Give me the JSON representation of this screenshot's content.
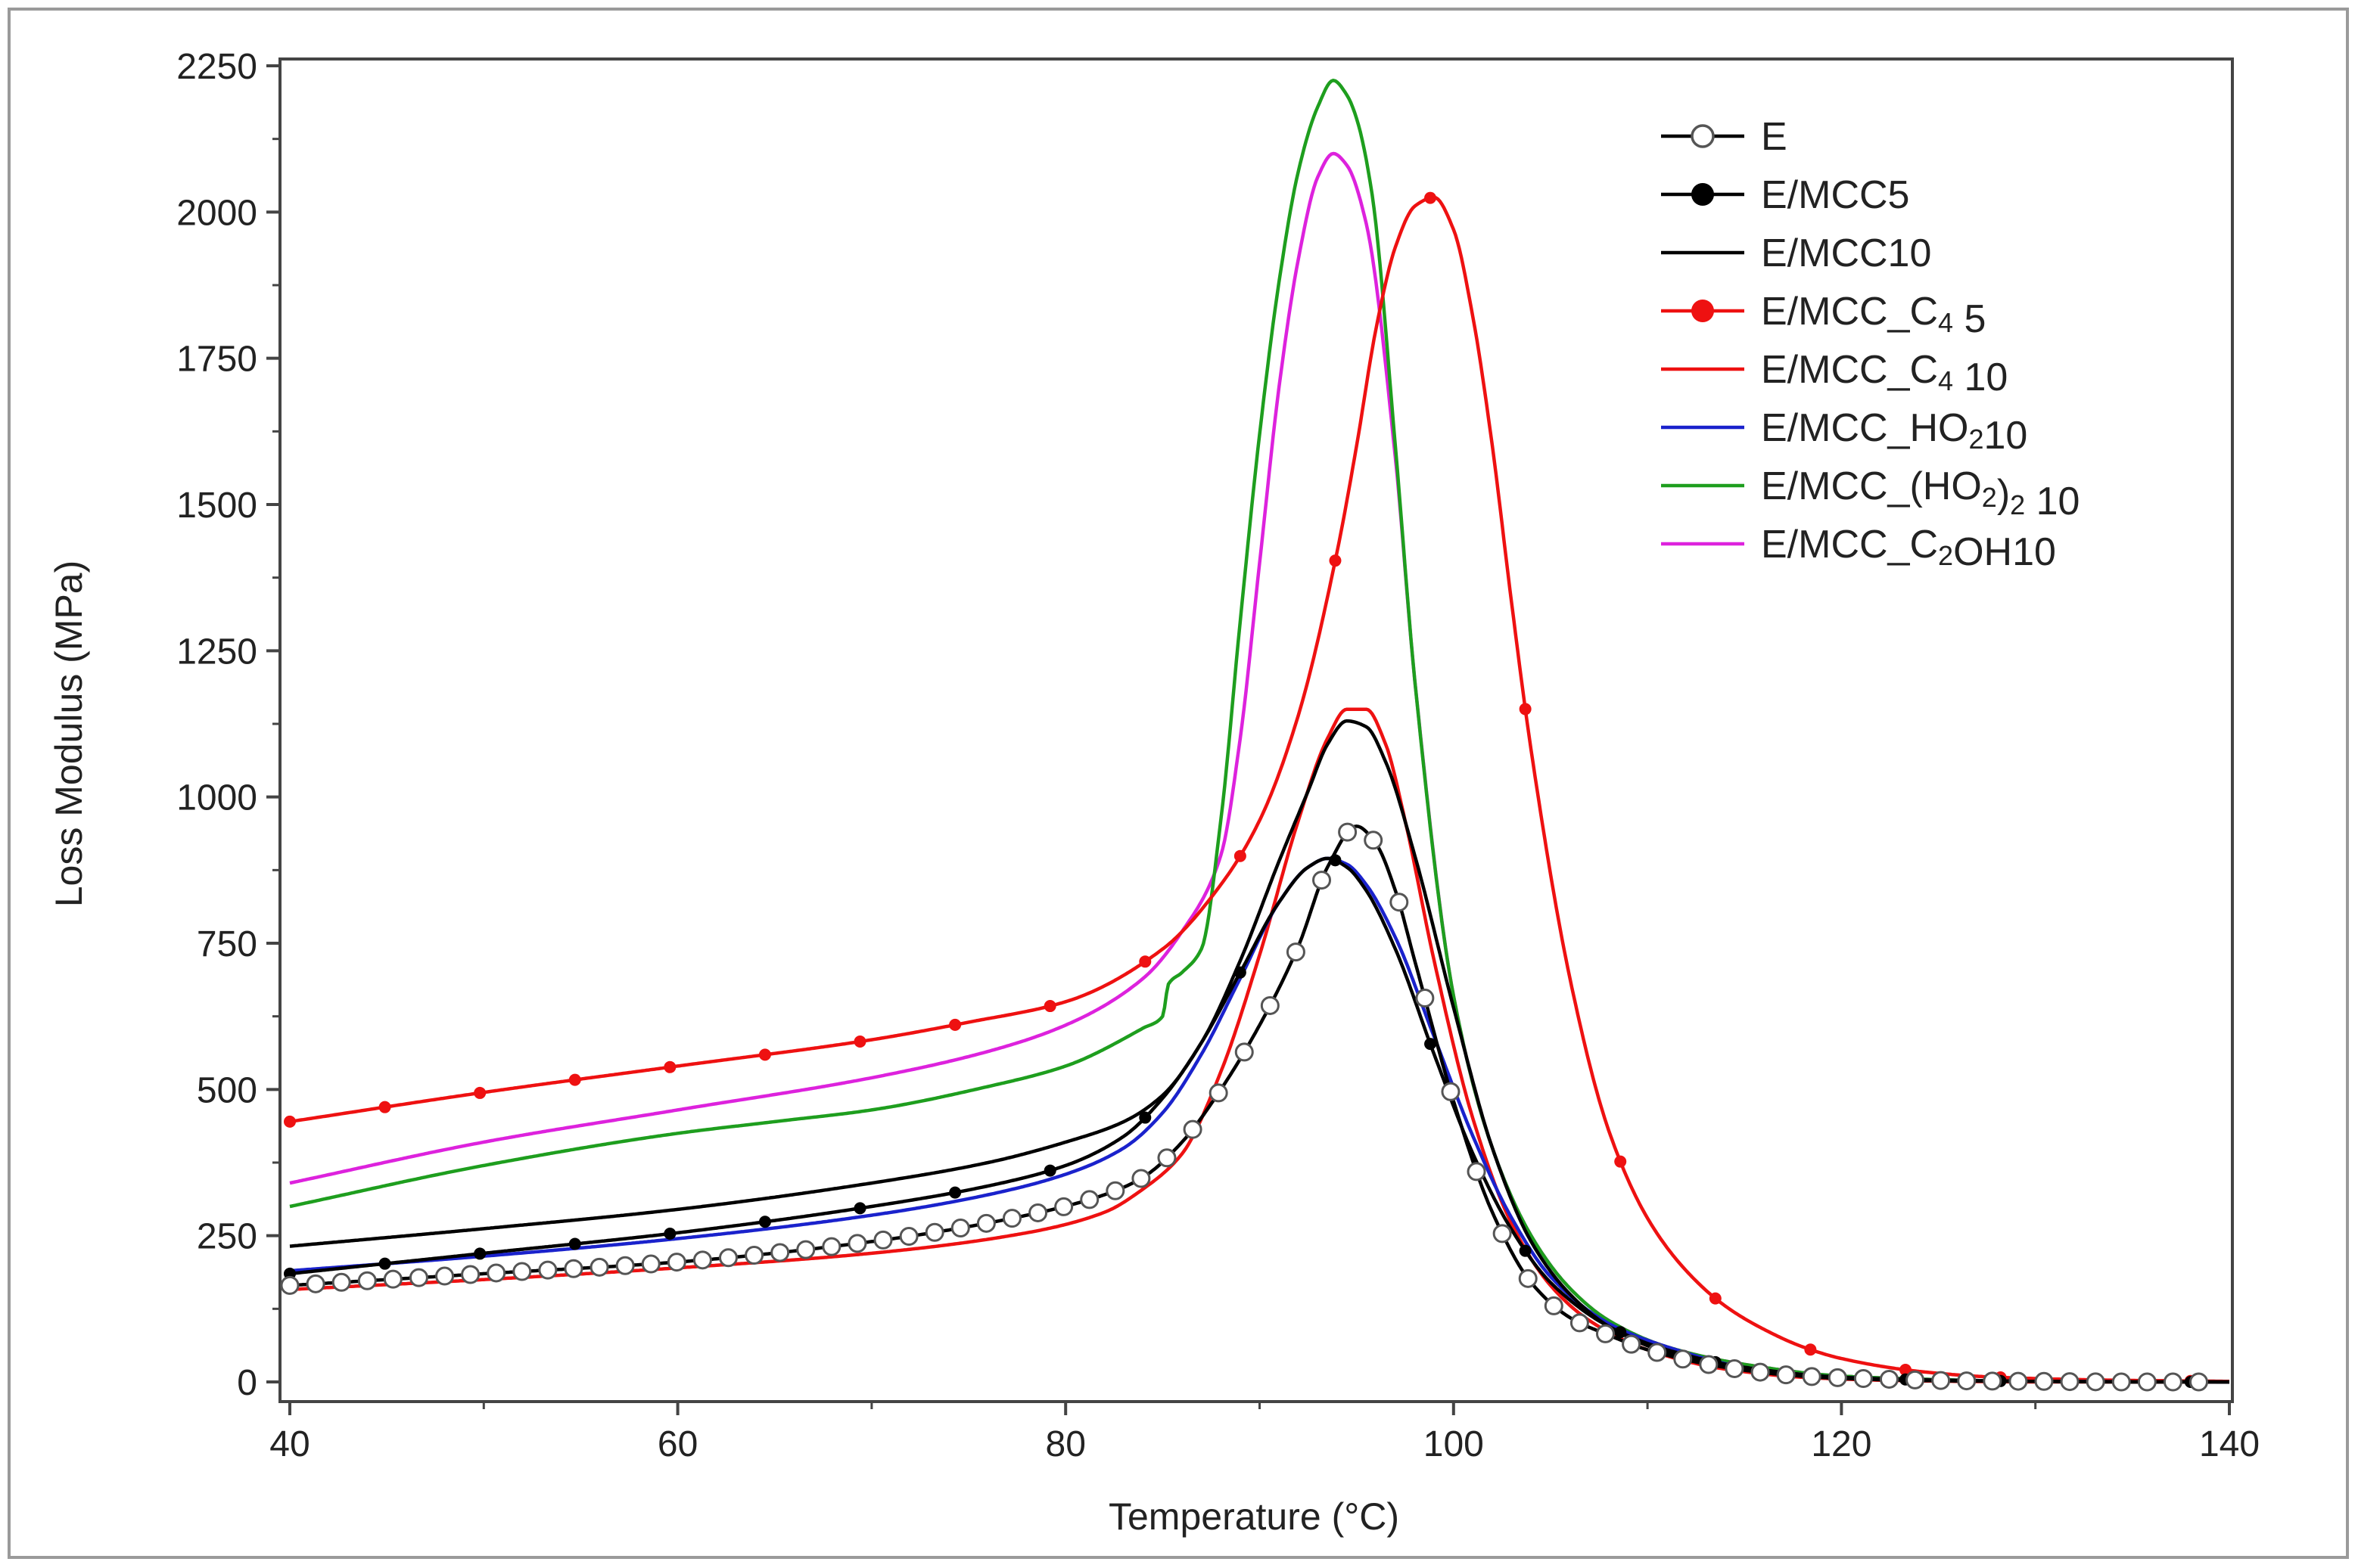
{
  "chart_data": {
    "type": "line",
    "title": "",
    "xlabel": "Temperature (°C)",
    "ylabel": "Loss Modulus (MPa)",
    "xlim": [
      40,
      140
    ],
    "ylim": [
      -80,
      2330
    ],
    "x_ticks": [
      40,
      60,
      80,
      100,
      120,
      140
    ],
    "y_ticks": [
      0,
      250,
      500,
      750,
      1000,
      1250,
      1500,
      1750,
      2000,
      2250
    ],
    "x_tick_labels": [
      "40",
      "60",
      "80",
      "100",
      "120",
      "140"
    ],
    "y_tick_labels": [
      "0",
      "250",
      "500",
      "750",
      "1000",
      "1250",
      "1500",
      "1750",
      "2000",
      "2250"
    ],
    "grid": false,
    "legend_position": "top-right",
    "series": [
      {
        "name": "E",
        "legend_label": "E",
        "color": "#000000",
        "marker": "open-circle",
        "x": [
          40,
          50,
          60,
          70,
          78,
          82,
          84,
          86,
          88,
          90,
          92,
          93.5,
          95,
          96,
          97,
          98,
          100,
          102,
          104,
          106,
          108,
          110,
          114,
          118,
          122,
          126,
          130,
          135,
          140
        ],
        "y": [
          165,
          185,
          205,
          240,
          285,
          320,
          350,
          410,
          500,
          610,
          745,
          880,
          950,
          920,
          840,
          720,
          480,
          290,
          170,
          110,
          80,
          55,
          25,
          10,
          5,
          2,
          1,
          0,
          0
        ]
      },
      {
        "name": "E/MCC5",
        "legend_label": "E/MCC5",
        "color": "#000000",
        "marker": "filled-dot",
        "x": [
          40,
          50,
          60,
          70,
          76,
          80,
          83,
          85,
          87,
          89,
          91,
          92.5,
          93.5,
          94.5,
          95.5,
          97,
          99,
          101,
          103,
          105,
          108,
          111,
          115,
          120,
          125,
          130,
          135,
          140
        ],
        "y": [
          185,
          220,
          255,
          300,
          335,
          370,
          420,
          485,
          580,
          700,
          820,
          880,
          895,
          880,
          840,
          740,
          560,
          390,
          260,
          170,
          95,
          55,
          25,
          8,
          3,
          1,
          0,
          0
        ]
      },
      {
        "name": "E/MCC10",
        "legend_label": "E/MCC10",
        "color": "#000000",
        "marker": "none",
        "x": [
          40,
          50,
          60,
          70,
          76,
          80,
          83,
          85,
          87,
          89,
          91,
          92.5,
          93.5,
          94.5,
          95.5,
          96.5,
          98,
          100,
          102,
          104,
          106,
          108,
          111,
          115,
          120,
          125,
          130,
          140
        ],
        "y": [
          232,
          262,
          295,
          340,
          375,
          410,
          445,
          490,
          580,
          720,
          890,
          1010,
          1090,
          1130,
          1120,
          1060,
          900,
          640,
          400,
          240,
          150,
          95,
          50,
          20,
          6,
          2,
          1,
          0
        ]
      },
      {
        "name": "E/MCC_C45",
        "legend_label": "E/MCC_C",
        "legend_sub": "4",
        "legend_tail": " 5",
        "color": "#ee1111",
        "marker": "filled-dot",
        "x": [
          40,
          50,
          60,
          70,
          75,
          80,
          85,
          88,
          90,
          92,
          94,
          95,
          96,
          97,
          98,
          99,
          100,
          101,
          102,
          103,
          104,
          106,
          108,
          110,
          112,
          114,
          116,
          118,
          120,
          124,
          128,
          134,
          140
        ],
        "y": [
          445,
          495,
          540,
          585,
          615,
          650,
          740,
          850,
          960,
          1140,
          1420,
          1600,
          1800,
          1940,
          2010,
          2025,
          1970,
          1820,
          1600,
          1330,
          1080,
          690,
          430,
          280,
          190,
          130,
          90,
          60,
          40,
          18,
          8,
          3,
          1
        ]
      },
      {
        "name": "E/MCC_C410",
        "legend_label": "E/MCC_C",
        "legend_sub": "4",
        "legend_tail": " 10",
        "color": "#ee1111",
        "marker": "none",
        "x": [
          40,
          50,
          60,
          70,
          78,
          82,
          84,
          86,
          88,
          90,
          92,
          93.5,
          94.5,
          95.5,
          96.5,
          97.5,
          99,
          101,
          103,
          105,
          107,
          110,
          114,
          118,
          122,
          126,
          130,
          140
        ],
        "y": [
          158,
          175,
          195,
          220,
          255,
          290,
          330,
          390,
          530,
          730,
          960,
          1100,
          1150,
          1150,
          1090,
          960,
          720,
          450,
          270,
          165,
          105,
          55,
          22,
          8,
          3,
          1,
          0,
          0
        ]
      },
      {
        "name": "E/MCC_HO210",
        "legend_label": "E/MCC_HO",
        "legend_sub": "2",
        "legend_tail": "10",
        "color": "#1a22cc",
        "marker": "none",
        "x": [
          40,
          50,
          60,
          70,
          76,
          80,
          83,
          85,
          87,
          89,
          91,
          92.5,
          93.5,
          94.5,
          95.5,
          97,
          99,
          101,
          103,
          105,
          108,
          111,
          115,
          120,
          125,
          130,
          140
        ],
        "y": [
          190,
          215,
          245,
          285,
          320,
          355,
          400,
          460,
          560,
          690,
          820,
          880,
          895,
          885,
          850,
          760,
          590,
          420,
          280,
          180,
          100,
          60,
          25,
          8,
          3,
          1,
          0
        ]
      },
      {
        "name": "E/MCC_(HO2)210",
        "legend_label": "E/MCC_(HO",
        "legend_sub": "2",
        "legend_mid": ")",
        "legend_sub2": "2",
        "legend_tail": " 10",
        "color": "#1e9e1e",
        "marker": "none",
        "x": [
          40,
          50,
          60,
          65,
          70,
          76,
          80,
          84,
          85,
          85.3,
          86,
          87,
          88,
          89,
          90,
          91,
          92,
          93,
          93.8,
          94.5,
          95,
          95.8,
          97,
          98,
          100,
          102,
          104,
          106,
          108,
          111,
          115,
          120,
          125,
          130,
          140
        ],
        "y": [
          300,
          370,
          425,
          445,
          465,
          505,
          540,
          605,
          625,
          680,
          700,
          740,
          960,
          1300,
          1620,
          1880,
          2070,
          2180,
          2225,
          2200,
          2160,
          2030,
          1600,
          1200,
          660,
          400,
          250,
          160,
          105,
          60,
          30,
          10,
          4,
          1,
          0
        ]
      },
      {
        "name": "E/MCC_C2OH10",
        "legend_label": "E/MCC_C",
        "legend_sub": "2",
        "legend_tail": "OH10",
        "color": "#dd22dd",
        "marker": "none",
        "x": [
          40,
          50,
          60,
          70,
          76,
          80,
          84,
          86,
          88,
          89,
          90,
          91,
          92,
          93,
          93.8,
          94.5,
          95.5,
          97,
          98,
          100,
          102,
          104,
          106,
          108,
          111,
          115,
          120,
          125,
          130,
          140
        ],
        "y": [
          340,
          410,
          465,
          520,
          565,
          610,
          690,
          770,
          900,
          1100,
          1400,
          1700,
          1920,
          2060,
          2100,
          2080,
          1980,
          1580,
          1200,
          660,
          400,
          250,
          160,
          105,
          60,
          30,
          10,
          4,
          1,
          0
        ]
      }
    ]
  }
}
